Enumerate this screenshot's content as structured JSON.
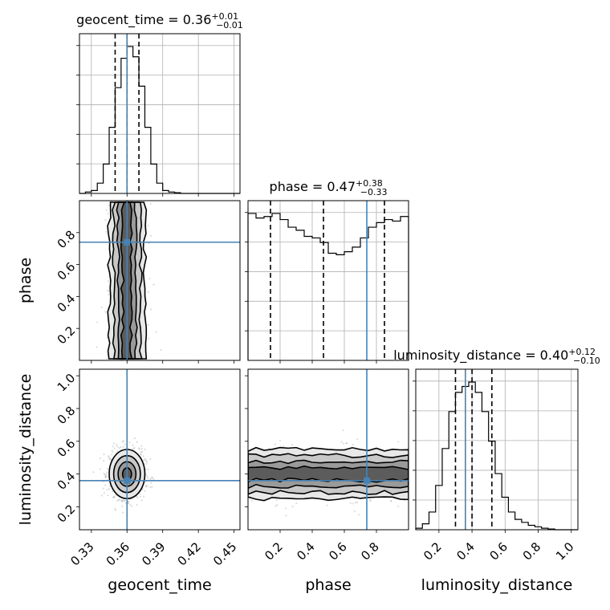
{
  "chart_data": {
    "type": "corner",
    "parameters": [
      {
        "name": "geocent_time",
        "median": 0.36,
        "plus": 0.01,
        "minus": 0.01,
        "title": "geocent_time = 0.36",
        "title_plus": "+0.01",
        "title_minus": "−0.01",
        "quantiles": [
          0.35,
          0.36,
          0.37
        ],
        "truth": 0.36,
        "range": [
          0.32,
          0.455
        ],
        "ticks": [
          0.33,
          0.36,
          0.39,
          0.42,
          0.45
        ],
        "tick_labels": [
          "0.33",
          "0.36",
          "0.39",
          "0.42",
          "0.45"
        ],
        "hist": {
          "edges": [
            0.32,
            0.325,
            0.33,
            0.335,
            0.34,
            0.345,
            0.35,
            0.355,
            0.36,
            0.365,
            0.37,
            0.375,
            0.38,
            0.385,
            0.39,
            0.395,
            0.4,
            0.405,
            0.455
          ],
          "counts": [
            0.0,
            0.01,
            0.02,
            0.07,
            0.2,
            0.45,
            0.72,
            0.92,
            1.0,
            0.93,
            0.73,
            0.45,
            0.2,
            0.07,
            0.02,
            0.01,
            0.005,
            0.0
          ]
        }
      },
      {
        "name": "phase",
        "median": 0.47,
        "plus": 0.38,
        "minus": 0.33,
        "title": "phase = 0.47",
        "title_plus": "+0.38",
        "title_minus": "−0.33",
        "quantiles": [
          0.14,
          0.47,
          0.85
        ],
        "truth": 0.74,
        "range": [
          0.0,
          1.0
        ],
        "ticks": [
          0.2,
          0.4,
          0.6,
          0.8
        ],
        "tick_labels": [
          "0.2",
          "0.4",
          "0.6",
          "0.8"
        ],
        "hist": {
          "edges": [
            0.0,
            0.05,
            0.1,
            0.15,
            0.2,
            0.25,
            0.3,
            0.35,
            0.4,
            0.45,
            0.5,
            0.55,
            0.6,
            0.65,
            0.7,
            0.75,
            0.8,
            0.85,
            0.9,
            0.95,
            1.0
          ],
          "counts": [
            0.96,
            0.93,
            0.94,
            0.96,
            0.92,
            0.87,
            0.85,
            0.81,
            0.8,
            0.77,
            0.7,
            0.69,
            0.71,
            0.74,
            0.8,
            0.87,
            0.9,
            0.92,
            0.91,
            0.94
          ]
        }
      },
      {
        "name": "luminosity_distance",
        "median": 0.4,
        "plus": 0.12,
        "minus": 0.1,
        "title": "luminosity_distance = 0.40",
        "title_plus": "+0.12",
        "title_minus": "−0.10",
        "quantiles": [
          0.3,
          0.4,
          0.52
        ],
        "truth": 0.36,
        "range": [
          0.06,
          1.04
        ],
        "ticks": [
          0.2,
          0.4,
          0.6,
          0.8,
          1.0
        ],
        "tick_labels": [
          "0.2",
          "0.4",
          "0.6",
          "0.8",
          "1.0"
        ],
        "hist": {
          "edges": [
            0.06,
            0.1,
            0.14,
            0.18,
            0.22,
            0.26,
            0.3,
            0.34,
            0.38,
            0.42,
            0.46,
            0.5,
            0.54,
            0.58,
            0.62,
            0.66,
            0.7,
            0.74,
            0.78,
            0.82,
            0.86,
            0.9,
            1.04
          ],
          "counts": [
            0.01,
            0.04,
            0.12,
            0.3,
            0.55,
            0.8,
            0.93,
            0.97,
            1.0,
            0.93,
            0.8,
            0.6,
            0.38,
            0.22,
            0.12,
            0.07,
            0.05,
            0.03,
            0.02,
            0.01,
            0.005,
            0.0
          ]
        }
      }
    ],
    "truth_color": "#4682b4",
    "contour_color": "#000000",
    "grid": true,
    "axis_labels": {
      "x": [
        "geocent_time",
        "phase",
        "luminosity_distance"
      ],
      "y": [
        "phase",
        "luminosity_distance"
      ]
    }
  }
}
